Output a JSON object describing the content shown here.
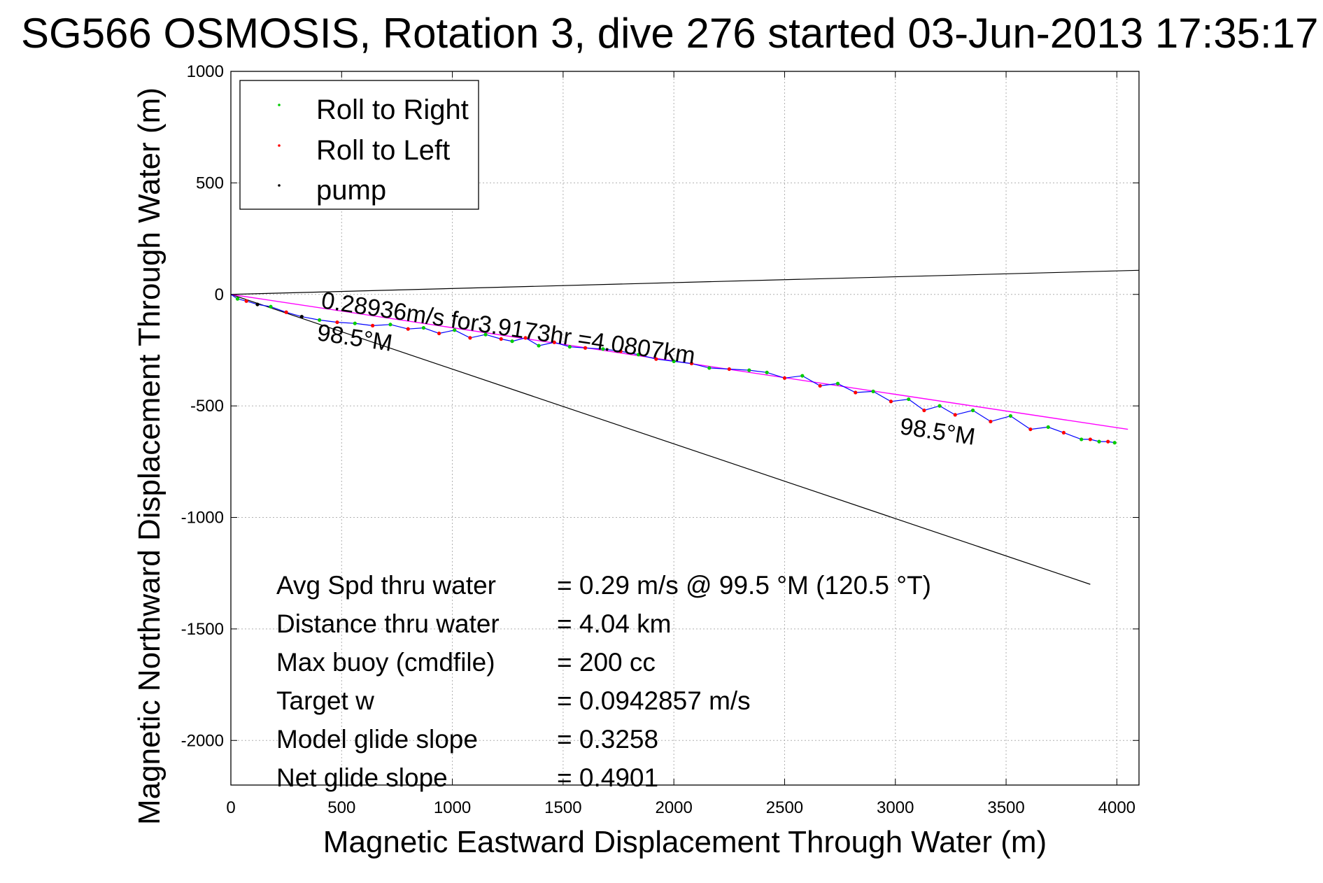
{
  "chart_data": {
    "type": "scatter",
    "title": "SG566 OSMOSIS, Rotation 3, dive 276 started 03-Jun-2013 17:35:17",
    "xlabel": "Magnetic Eastward Displacement Through Water (m)",
    "ylabel": "Magnetic Northward Displacement Through Water (m)",
    "xlim": [
      0,
      4100
    ],
    "ylim": [
      -2200,
      1000
    ],
    "xticks": [
      0,
      500,
      1000,
      1500,
      2000,
      2500,
      3000,
      3500,
      4000
    ],
    "yticks": [
      1000,
      500,
      0,
      -500,
      -1000,
      -1500,
      -2000
    ],
    "grid": true,
    "legend_position": "top-left",
    "colors": {
      "track": "#0000ff",
      "right": "#00cc00",
      "left": "#ff0000",
      "pump": "#000000",
      "fit": "#ff00ff",
      "reference": "#000000"
    },
    "track": {
      "x": [
        0,
        30,
        70,
        120,
        180,
        250,
        320,
        400,
        480,
        560,
        640,
        720,
        800,
        870,
        940,
        1010,
        1080,
        1150,
        1220,
        1270,
        1330,
        1390,
        1460,
        1530,
        1600,
        1680,
        1760,
        1840,
        1920,
        2000,
        2080,
        2160,
        2250,
        2340,
        2420,
        2500,
        2580,
        2660,
        2740,
        2820,
        2900,
        2980,
        3060,
        3130,
        3200,
        3270,
        3350,
        3430,
        3520,
        3610,
        3690,
        3760,
        3800,
        3840,
        3880,
        3920,
        3960,
        3990
      ],
      "y": [
        0,
        -20,
        -30,
        -45,
        -55,
        -80,
        -100,
        -115,
        -125,
        -130,
        -140,
        -135,
        -155,
        -150,
        -175,
        -160,
        -195,
        -180,
        -200,
        -210,
        -195,
        -230,
        -215,
        -235,
        -240,
        -245,
        -255,
        -270,
        -290,
        -300,
        -310,
        -330,
        -335,
        -340,
        -350,
        -375,
        -365,
        -410,
        -400,
        -440,
        -435,
        -480,
        -470,
        -520,
        -500,
        -540,
        -520,
        -570,
        -545,
        -605,
        -595,
        -620,
        -635,
        -650,
        -650,
        -660,
        -660,
        -665
      ]
    },
    "series": [
      {
        "name": "Roll to Right",
        "x": [
          30,
          180,
          400,
          560,
          720,
          870,
          1010,
          1150,
          1270,
          1390,
          1530,
          1680,
          1840,
          2000,
          2160,
          2340,
          2420,
          2580,
          2740,
          2900,
          3060,
          3200,
          3350,
          3520,
          3690,
          3840,
          3920,
          3990
        ],
        "y": [
          -20,
          -55,
          -115,
          -130,
          -135,
          -150,
          -160,
          -180,
          -210,
          -230,
          -235,
          -245,
          -270,
          -300,
          -330,
          -340,
          -350,
          -365,
          -400,
          -435,
          -470,
          -500,
          -520,
          -545,
          -595,
          -650,
          -660,
          -665
        ]
      },
      {
        "name": "Roll to Left",
        "x": [
          70,
          250,
          480,
          640,
          800,
          940,
          1080,
          1220,
          1330,
          1460,
          1600,
          1760,
          1920,
          2080,
          2250,
          2500,
          2660,
          2820,
          2980,
          3130,
          3270,
          3430,
          3610,
          3760,
          3880,
          3960
        ],
        "y": [
          -30,
          -80,
          -125,
          -140,
          -155,
          -175,
          -195,
          -200,
          -195,
          -215,
          -240,
          -255,
          -290,
          -310,
          -335,
          -375,
          -410,
          -440,
          -480,
          -520,
          -540,
          -570,
          -605,
          -620,
          -650,
          -660
        ]
      },
      {
        "name": "pump",
        "x": [
          120,
          320
        ],
        "y": [
          -45,
          -100
        ]
      }
    ],
    "fit_line": {
      "x": [
        0,
        4050
      ],
      "y": [
        0,
        -605
      ]
    },
    "reference_lines": [
      {
        "x": [
          0,
          4100
        ],
        "y": [
          0,
          108
        ]
      },
      {
        "x": [
          0,
          3880
        ],
        "y": [
          0,
          -1300
        ]
      }
    ],
    "annotations": {
      "speed": "0.28936m/s for3.9173hr =4.0807km",
      "heading_1": "98.5°M",
      "heading_2": "98.5°M"
    },
    "stats": [
      {
        "label": "Avg Spd thru water",
        "value": "=  0.29 m/s @  99.5 °M (120.5 °T)"
      },
      {
        "label": "Distance thru water",
        "value": "=  4.04 km"
      },
      {
        "label": "Max buoy (cmdfile)",
        "value": "= 200 cc"
      },
      {
        "label": "Target w",
        "value": "= 0.0942857 m/s"
      },
      {
        "label": "Model glide slope",
        "value": "= 0.3258"
      },
      {
        "label": "Net glide slope",
        "value": "= 0.4901"
      }
    ]
  }
}
